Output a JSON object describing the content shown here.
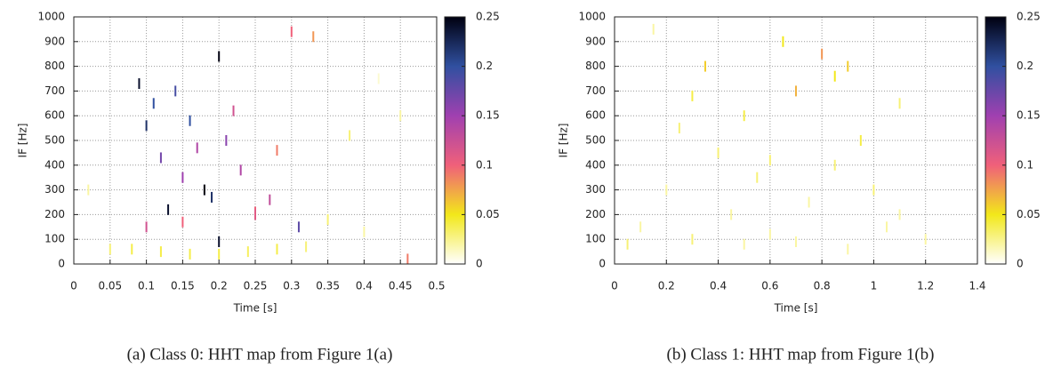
{
  "chart_data": [
    {
      "type": "heatmap",
      "caption": "(a) Class 0: HHT map from Figure 1(a)",
      "xlabel": "Time [s]",
      "ylabel": "IF [Hz]",
      "xlim": [
        0,
        0.5
      ],
      "xticks": [
        0,
        0.05,
        0.1,
        0.15,
        0.2,
        0.25,
        0.3,
        0.35,
        0.4,
        0.45,
        0.5
      ],
      "ylim": [
        0,
        1000
      ],
      "yticks": [
        0,
        100,
        200,
        300,
        400,
        500,
        600,
        700,
        800,
        900,
        1000
      ],
      "clim": [
        0,
        0.25
      ],
      "cticks": [
        0,
        0.05,
        0.1,
        0.15,
        0.2,
        0.25
      ],
      "grid": true,
      "colormap": [
        "#ffffff",
        "#f2e81a",
        "#f0607a",
        "#a040b0",
        "#3050a0",
        "#000010"
      ],
      "x": [
        0.09,
        0.1,
        0.11,
        0.12,
        0.13,
        0.14,
        0.15,
        0.16,
        0.17,
        0.18,
        0.19,
        0.2,
        0.2,
        0.21,
        0.22,
        0.23,
        0.25,
        0.27,
        0.28,
        0.3,
        0.31,
        0.33,
        0.35,
        0.4,
        0.45,
        0.05,
        0.08,
        0.12,
        0.16,
        0.2,
        0.24,
        0.28,
        0.32,
        0.1,
        0.15,
        0.25,
        0.46,
        0.02,
        0.38,
        0.42
      ],
      "y": [
        730,
        560,
        650,
        430,
        220,
        700,
        350,
        580,
        470,
        300,
        270,
        840,
        90,
        500,
        620,
        380,
        210,
        260,
        460,
        940,
        150,
        920,
        180,
        130,
        600,
        60,
        60,
        50,
        40,
        40,
        50,
        60,
        70,
        150,
        170,
        200,
        20,
        300,
        520,
        750
      ],
      "values": [
        0.24,
        0.22,
        0.2,
        0.17,
        0.24,
        0.19,
        0.15,
        0.2,
        0.14,
        0.25,
        0.22,
        0.25,
        0.24,
        0.16,
        0.12,
        0.14,
        0.1,
        0.13,
        0.09,
        0.1,
        0.18,
        0.08,
        0.03,
        0.02,
        0.02,
        0.03,
        0.04,
        0.04,
        0.04,
        0.04,
        0.035,
        0.04,
        0.03,
        0.12,
        0.1,
        0.11,
        0.09,
        0.02,
        0.03,
        0.01
      ]
    },
    {
      "type": "heatmap",
      "caption": "(b) Class 1: HHT map from Figure 1(b)",
      "xlabel": "Time [s]",
      "ylabel": "IF [Hz]",
      "xlim": [
        0,
        1.4
      ],
      "xticks": [
        0,
        0.2,
        0.4,
        0.6,
        0.8,
        1,
        1.2,
        1.4
      ],
      "ylim": [
        0,
        1000
      ],
      "yticks": [
        0,
        100,
        200,
        300,
        400,
        500,
        600,
        700,
        800,
        900,
        1000
      ],
      "clim": [
        0,
        0.25
      ],
      "cticks": [
        0,
        0.05,
        0.1,
        0.15,
        0.2,
        0.25
      ],
      "grid": true,
      "colormap": [
        "#ffffff",
        "#f2e81a",
        "#f0607a",
        "#a040b0",
        "#3050a0",
        "#000010"
      ],
      "x": [
        0.05,
        0.1,
        0.2,
        0.3,
        0.35,
        0.4,
        0.45,
        0.5,
        0.55,
        0.6,
        0.65,
        0.7,
        0.75,
        0.8,
        0.85,
        0.9,
        0.95,
        1.0,
        1.05,
        1.1,
        1.2,
        0.15,
        0.25,
        0.5,
        0.7,
        0.9,
        1.1,
        0.3,
        0.6,
        0.85
      ],
      "y": [
        80,
        150,
        300,
        100,
        800,
        450,
        200,
        600,
        350,
        120,
        900,
        700,
        250,
        850,
        400,
        60,
        500,
        300,
        150,
        650,
        100,
        950,
        550,
        80,
        90,
        800,
        200,
        680,
        420,
        760
      ],
      "values": [
        0.03,
        0.02,
        0.02,
        0.03,
        0.06,
        0.03,
        0.02,
        0.04,
        0.03,
        0.02,
        0.05,
        0.07,
        0.02,
        0.08,
        0.03,
        0.02,
        0.04,
        0.03,
        0.02,
        0.03,
        0.02,
        0.02,
        0.03,
        0.02,
        0.02,
        0.06,
        0.02,
        0.04,
        0.03,
        0.05
      ]
    }
  ]
}
